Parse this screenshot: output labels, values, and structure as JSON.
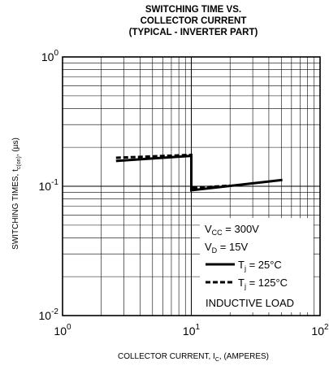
{
  "chart_data": {
    "type": "line",
    "title_lines": [
      "SWITCHING TIME VS.",
      "COLLECTOR CURRENT",
      "(TYPICAL - INVERTER PART)"
    ],
    "xlabel": {
      "main": "COLLECTOR CURRENT, I",
      "sub": "C",
      "suffix": ", (AMPERES)"
    },
    "ylabel": {
      "main": "SWITCHING TIMES, t",
      "sub": "c(on)",
      "suffix": ", (µs)"
    },
    "xscale": "log",
    "yscale": "log",
    "xlim": [
      1,
      100
    ],
    "ylim": [
      0.01,
      1
    ],
    "grid": true,
    "x_ticks": [
      {
        "base": "10",
        "exp": "0"
      },
      {
        "base": "10",
        "exp": "1"
      },
      {
        "base": "10",
        "exp": "2"
      }
    ],
    "y_ticks": [
      {
        "base": "10",
        "exp": "0"
      },
      {
        "base": "10",
        "exp": "-1"
      },
      {
        "base": "10",
        "exp": "-2"
      }
    ],
    "series": [
      {
        "name": "Tj = 25°C",
        "style": "solid",
        "x": [
          2.6,
          10.0,
          10.0,
          51.0
        ],
        "y": [
          0.157,
          0.172,
          0.093,
          0.112
        ]
      },
      {
        "name": "Tj = 125°C",
        "style": "dashed",
        "x": [
          2.6,
          10.0,
          10.0,
          20.0
        ],
        "y": [
          0.166,
          0.175,
          0.097,
          0.101
        ]
      }
    ],
    "legend": {
      "position": "bottom-right",
      "conditions": [
        {
          "main": "V",
          "sub": "CC",
          "suffix": " = 300V"
        },
        {
          "main": "V",
          "sub": "D",
          "suffix": " = 15V"
        }
      ],
      "entries": [
        {
          "main": "T",
          "sub": "j",
          "suffix": " = 25°C"
        },
        {
          "main": "T",
          "sub": "j",
          "suffix": " = 125°C"
        }
      ],
      "note": "INDUCTIVE LOAD"
    }
  }
}
